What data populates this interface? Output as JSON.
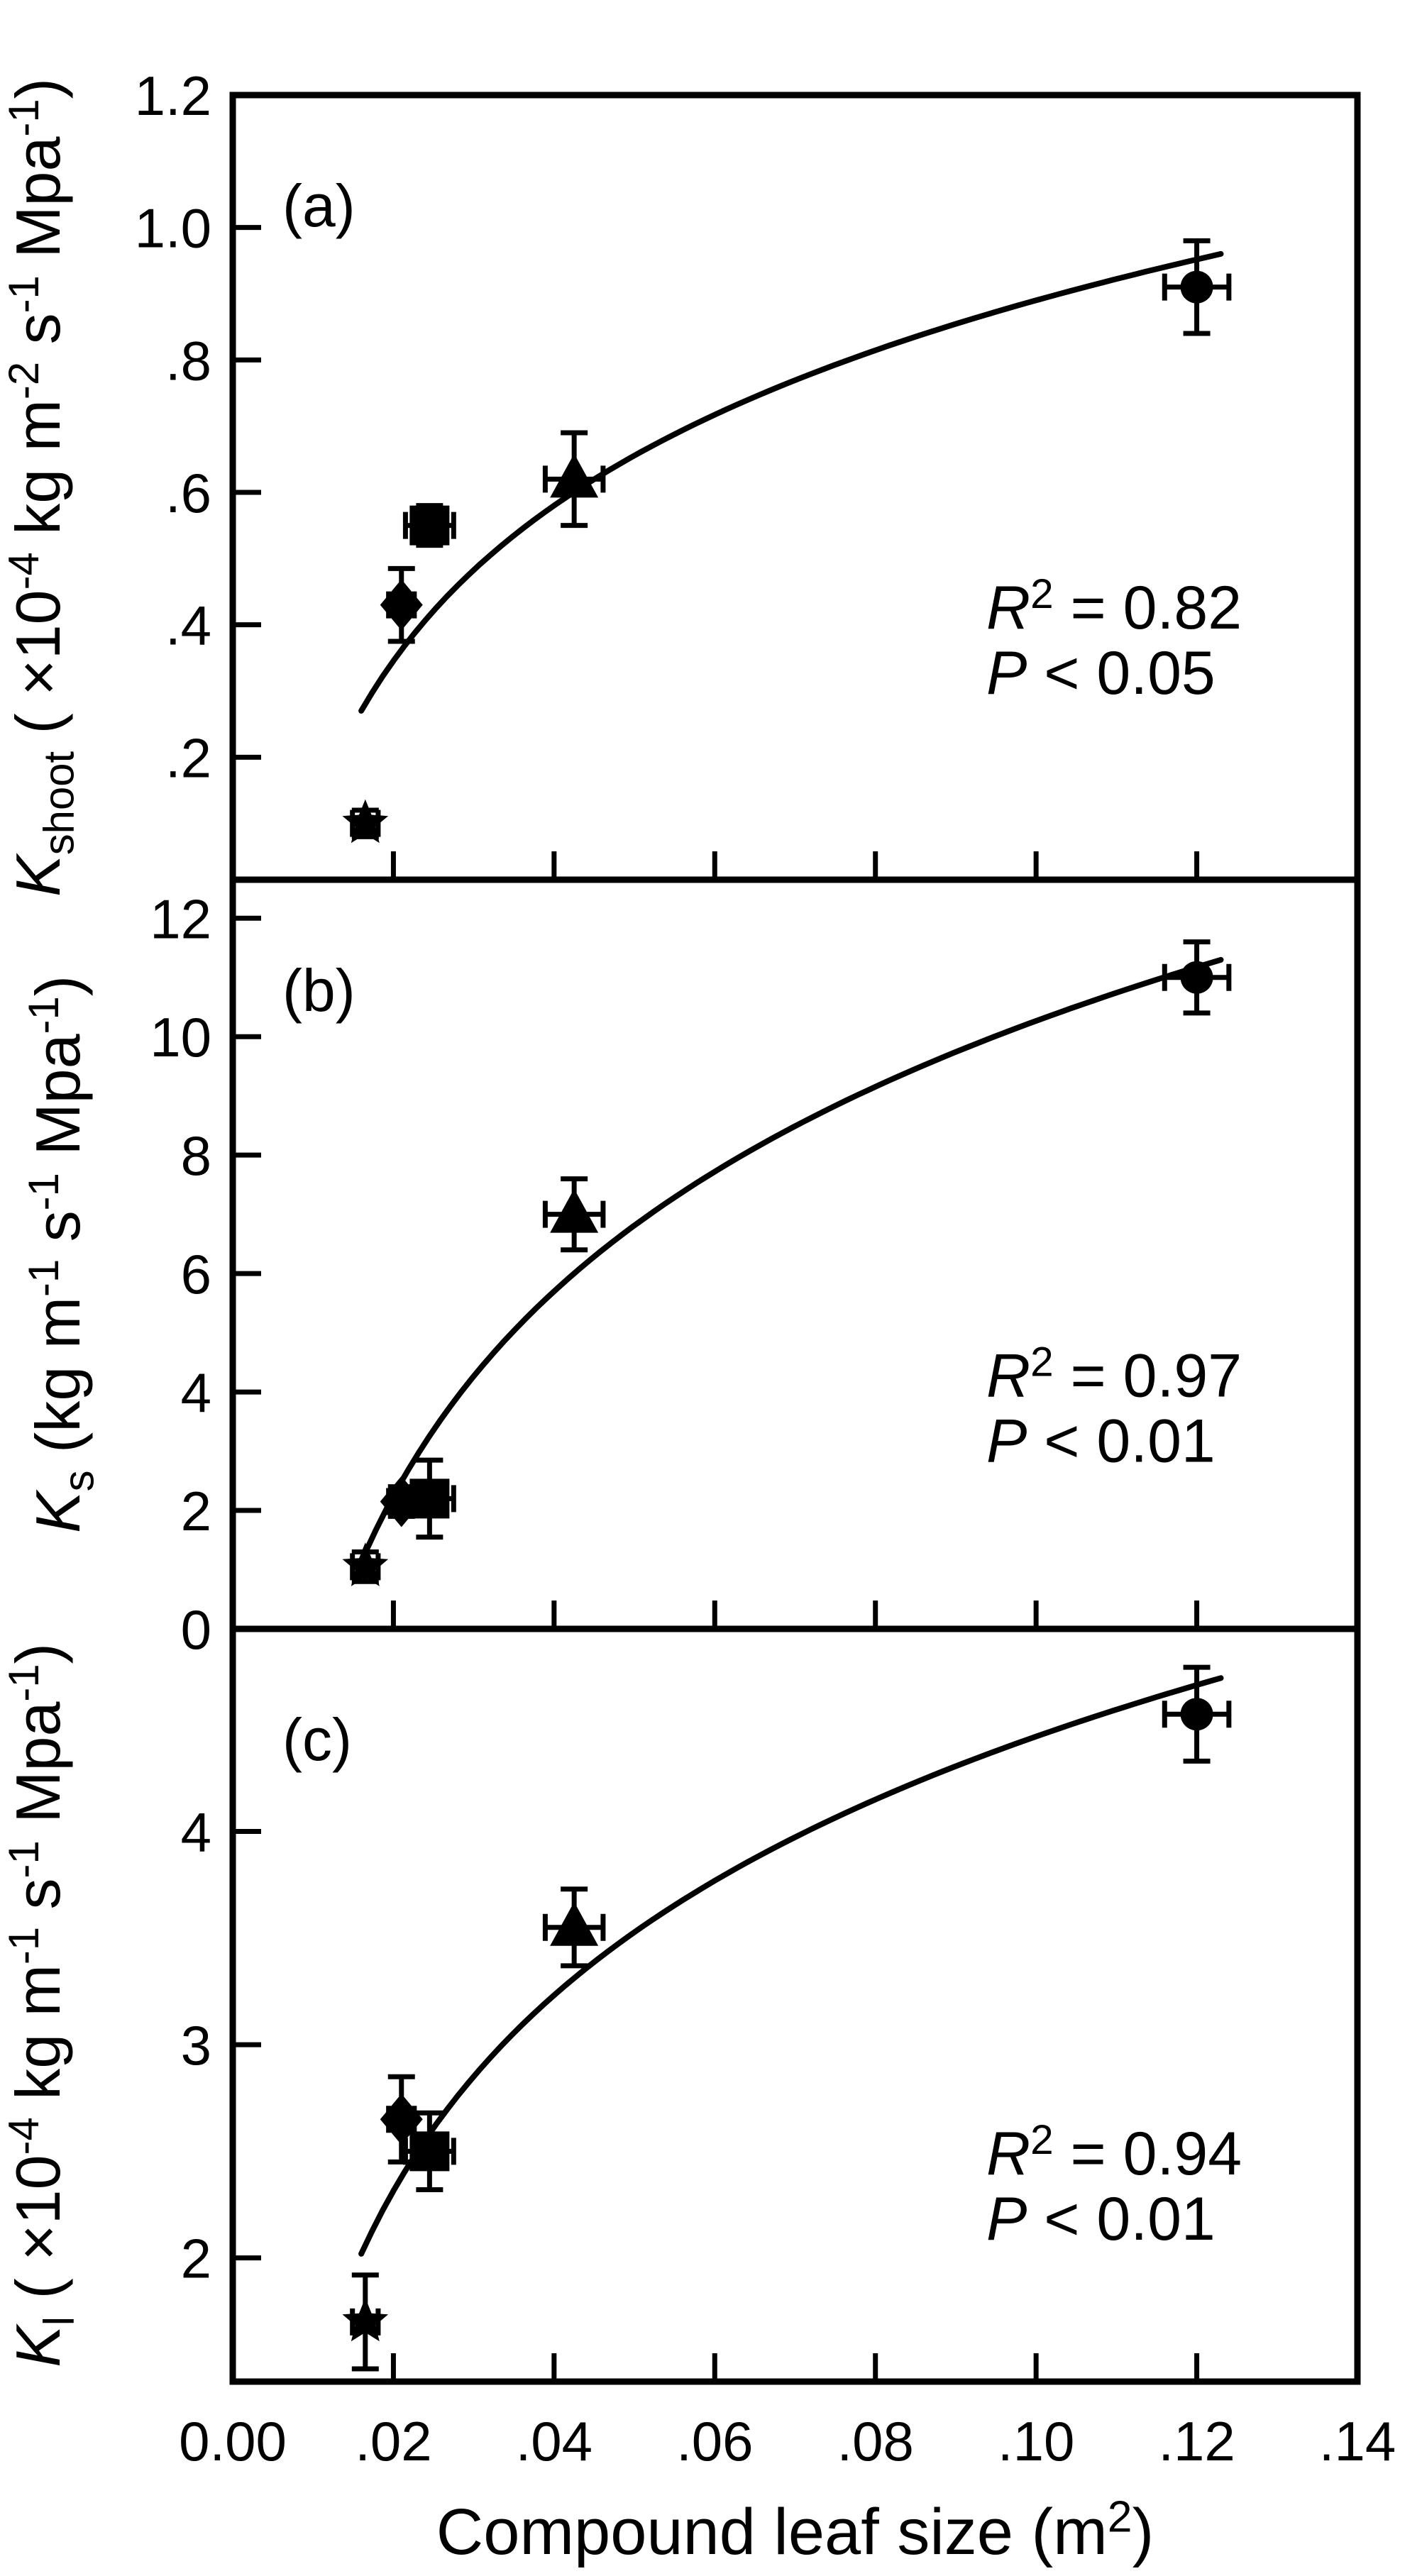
{
  "figure": {
    "background": "#ffffff",
    "ink": "#000000",
    "xlabel_segments": [
      [
        "Compound leaf size (m",
        "n"
      ],
      [
        "2",
        "sup"
      ],
      [
        ")",
        "n"
      ]
    ],
    "xlim": [
      0,
      0.14
    ],
    "xticks": [
      0,
      0.02,
      0.04,
      0.06,
      0.08,
      0.1,
      0.12,
      0.14
    ],
    "xticklabels": [
      "0.00",
      ".02",
      ".04",
      ".06",
      ".08",
      ".10",
      ".12",
      ".14"
    ],
    "grid": "off",
    "legend": "none"
  },
  "chart_data": [
    {
      "type": "scatter",
      "panel_label": "(a)",
      "ylabel_segments": [
        [
          "K",
          "i"
        ],
        [
          "shoot",
          "sub"
        ],
        [
          " ( ×10",
          "n"
        ],
        [
          "-4",
          "sup"
        ],
        [
          " kg m",
          "n"
        ],
        [
          "-2",
          "sup"
        ],
        [
          " s",
          "n"
        ],
        [
          "-1",
          "sup"
        ],
        [
          " Mpa",
          "n"
        ],
        [
          "-1",
          "sup"
        ],
        [
          ")",
          "n"
        ]
      ],
      "ylim": [
        0.015,
        1.2
      ],
      "yticks": [
        0.2,
        0.4,
        0.6,
        0.8,
        1.0,
        1.2
      ],
      "yticklabels": [
        ".2",
        ".4",
        ".6",
        ".8",
        "1.0",
        "1.2"
      ],
      "points": [
        {
          "marker": "star",
          "x": 0.0165,
          "y": 0.1,
          "xerr": 0.0016,
          "yerr": 0.02
        },
        {
          "marker": "diamond",
          "x": 0.021,
          "y": 0.43,
          "xerr": 0.0016,
          "yerr": 0.055
        },
        {
          "marker": "square",
          "x": 0.0245,
          "y": 0.55,
          "xerr": 0.003,
          "yerr": 0.03
        },
        {
          "marker": "triangle",
          "x": 0.0425,
          "y": 0.62,
          "xerr": 0.0036,
          "yerr": 0.07
        },
        {
          "marker": "circle",
          "x": 0.12,
          "y": 0.91,
          "xerr": 0.004,
          "yerr": 0.07
        }
      ],
      "fit_curve": {
        "type": "log",
        "a": 1.669,
        "b": 0.3383,
        "x_start": 0.016,
        "x_end": 0.123
      },
      "annotation_lines": [
        [
          [
            "R",
            "i"
          ],
          [
            "2",
            "sup"
          ],
          [
            " = 0.82",
            "n"
          ]
        ],
        [
          [
            "P",
            "i"
          ],
          [
            " < 0.05",
            "n"
          ]
        ]
      ],
      "r_squared": "0.82",
      "p_value": "P < 0.05"
    },
    {
      "type": "scatter",
      "panel_label": "(b)",
      "ylabel_segments": [
        [
          "K",
          "i"
        ],
        [
          "s",
          "sub"
        ],
        [
          " (kg m",
          "n"
        ],
        [
          "-1",
          "sup"
        ],
        [
          " s",
          "n"
        ],
        [
          "-1",
          "sup"
        ],
        [
          " Mpa",
          "n"
        ],
        [
          "-1",
          "sup"
        ],
        [
          ")",
          "n"
        ]
      ],
      "ylim": [
        0,
        12.65
      ],
      "yticks": [
        0,
        2,
        4,
        6,
        8,
        10,
        12
      ],
      "yticklabels": [
        "0",
        "2",
        "4",
        "6",
        "8",
        "10",
        "12"
      ],
      "points": [
        {
          "marker": "star",
          "x": 0.0165,
          "y": 1.05,
          "xerr": 0.0016,
          "yerr": 0.25
        },
        {
          "marker": "diamond",
          "x": 0.021,
          "y": 2.15,
          "xerr": 0.0016,
          "yerr": 0.25
        },
        {
          "marker": "square",
          "x": 0.0245,
          "y": 2.2,
          "xerr": 0.003,
          "yerr": 0.65
        },
        {
          "marker": "triangle",
          "x": 0.0425,
          "y": 7.0,
          "xerr": 0.0036,
          "yerr": 0.6
        },
        {
          "marker": "circle",
          "x": 0.12,
          "y": 11.0,
          "xerr": 0.004,
          "yerr": 0.6
        }
      ],
      "fit_curve": {
        "type": "log",
        "a": 21.74,
        "b": 4.983,
        "x_start": 0.0165,
        "x_end": 0.123
      },
      "annotation_lines": [
        [
          [
            "R",
            "i"
          ],
          [
            "2",
            "sup"
          ],
          [
            " = 0.97",
            "n"
          ]
        ],
        [
          [
            "P",
            "i"
          ],
          [
            " < 0.01",
            "n"
          ]
        ]
      ],
      "r_squared": "0.97",
      "p_value": "P < 0.01"
    },
    {
      "type": "scatter",
      "panel_label": "(c)",
      "ylabel_segments": [
        [
          "K",
          "i"
        ],
        [
          "l",
          "sub"
        ],
        [
          " ( ×10",
          "n"
        ],
        [
          "-4",
          "sup"
        ],
        [
          " kg m",
          "n"
        ],
        [
          "-1",
          "sup"
        ],
        [
          " s",
          "n"
        ],
        [
          "-1",
          "sup"
        ],
        [
          " Mpa",
          "n"
        ],
        [
          "-1",
          "sup"
        ],
        [
          ")",
          "n"
        ]
      ],
      "ylim": [
        1.42,
        4.95
      ],
      "yticks": [
        2,
        3,
        4
      ],
      "yticklabels": [
        "2",
        "3",
        "4"
      ],
      "points": [
        {
          "marker": "star",
          "x": 0.0165,
          "y": 1.7,
          "xerr": 0.0016,
          "yerr": 0.22
        },
        {
          "marker": "diamond",
          "x": 0.021,
          "y": 2.65,
          "xerr": 0.0016,
          "yerr": 0.2
        },
        {
          "marker": "square",
          "x": 0.0245,
          "y": 2.5,
          "xerr": 0.003,
          "yerr": 0.18
        },
        {
          "marker": "triangle",
          "x": 0.0425,
          "y": 3.55,
          "xerr": 0.0036,
          "yerr": 0.18
        },
        {
          "marker": "circle",
          "x": 0.12,
          "y": 4.55,
          "xerr": 0.004,
          "yerr": 0.22
        }
      ],
      "fit_curve": {
        "type": "log",
        "a": 7.494,
        "b": 1.324,
        "x_start": 0.016,
        "x_end": 0.123
      },
      "annotation_lines": [
        [
          [
            "R",
            "i"
          ],
          [
            "2",
            "sup"
          ],
          [
            " = 0.94",
            "n"
          ]
        ],
        [
          [
            "P",
            "i"
          ],
          [
            " < 0.01",
            "n"
          ]
        ]
      ],
      "r_squared": "0.94",
      "p_value": "P < 0.01"
    }
  ]
}
